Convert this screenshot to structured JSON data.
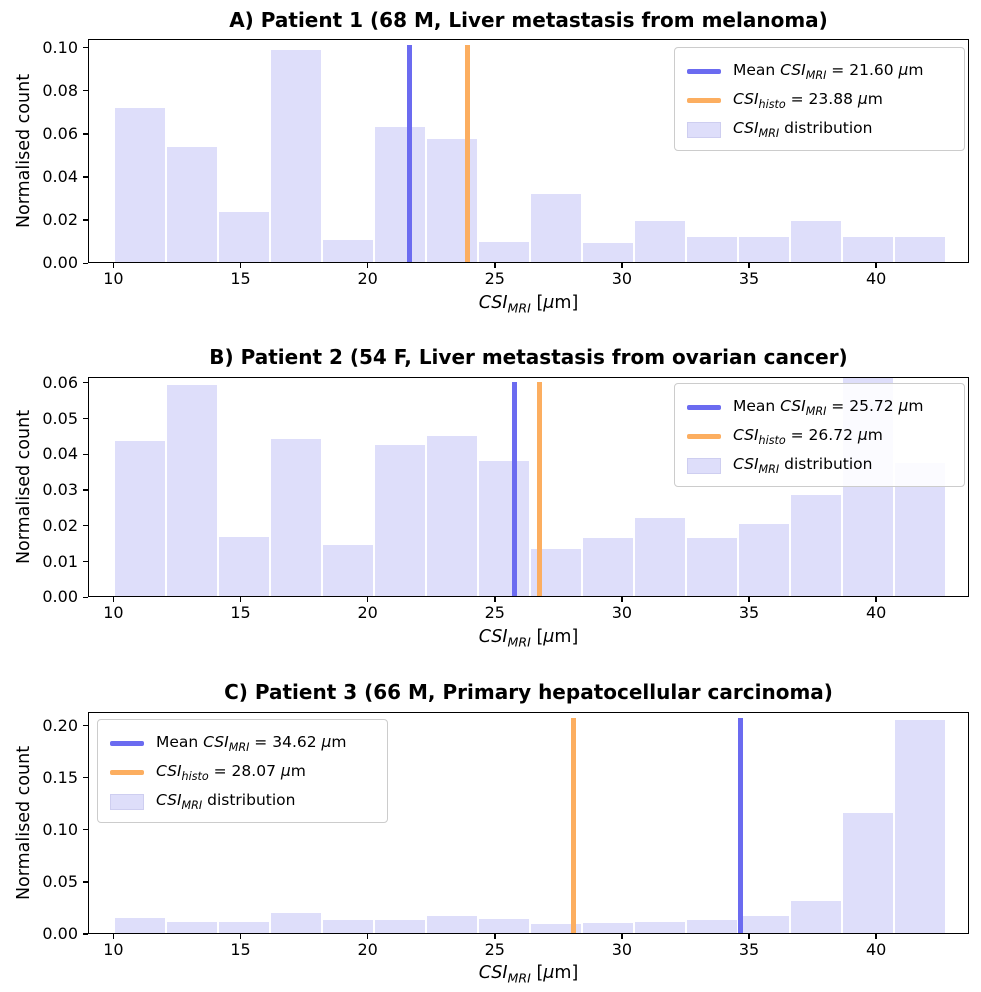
{
  "figure": {
    "ylabel": "Normalised count",
    "xlabel": "CSI_{MRI}  [μm]",
    "xticks": [
      10,
      15,
      20,
      25,
      30,
      35,
      40
    ],
    "colors": {
      "mean_line": "#6b6bf0",
      "histo_line": "#fcae60",
      "bar_fill": "#dedefa",
      "legend_border": "#cccccc",
      "axis": "#000000",
      "background": "#ffffff"
    }
  },
  "chart_data": [
    {
      "type": "bar",
      "panel": "A",
      "title": "A) Patient 1 (68 M, Liver metastasis from melanoma)",
      "ylabel": "Normalised count",
      "xlabel": "CSI_{MRI}  [μm]",
      "bins": {
        "start": 10,
        "end": 42.7,
        "count": 16
      },
      "values": [
        0.0716,
        0.0533,
        0.0233,
        0.0984,
        0.0105,
        0.0628,
        0.0573,
        0.0094,
        0.0317,
        0.0088,
        0.0192,
        0.0117,
        0.0117,
        0.0192,
        0.0117,
        0.0117
      ],
      "mean_mri_um": 21.6,
      "csi_histo_um": 23.88,
      "xlim": [
        9.0,
        43.65
      ],
      "ylim": [
        0,
        0.104
      ],
      "yticks": [
        0,
        0.02,
        0.04,
        0.06,
        0.08,
        0.1
      ],
      "legend": {
        "position": "top-right",
        "entries": [
          {
            "swatch": "mean-line",
            "label": "Mean CSI_{MRI} = 21.60 μm"
          },
          {
            "swatch": "histo-line",
            "label": "CSI_{histo} = 23.88 μm"
          },
          {
            "swatch": "dist-patch",
            "label": "CSI_{MRI} distribution"
          }
        ]
      }
    },
    {
      "type": "bar",
      "panel": "B",
      "title": "B) Patient 2 (54 F, Liver metastasis from ovarian cancer)",
      "ylabel": "Normalised count",
      "xlabel": "CSI_{MRI}  [μm]",
      "bins": {
        "start": 10,
        "end": 42.7,
        "count": 16
      },
      "values": [
        0.0435,
        0.0592,
        0.0165,
        0.044,
        0.0143,
        0.0424,
        0.0448,
        0.0379,
        0.0131,
        0.0162,
        0.0218,
        0.0162,
        0.0202,
        0.0284,
        0.062,
        0.0372
      ],
      "mean_mri_um": 25.72,
      "csi_histo_um": 26.72,
      "xlim": [
        9.0,
        43.65
      ],
      "ylim": [
        0,
        0.0617
      ],
      "yticks": [
        0,
        0.01,
        0.02,
        0.03,
        0.04,
        0.05,
        0.06
      ],
      "legend": {
        "position": "top-right",
        "entries": [
          {
            "swatch": "mean-line",
            "label": "Mean CSI_{MRI} = 25.72 μm"
          },
          {
            "swatch": "histo-line",
            "label": "CSI_{histo} = 26.72 μm"
          },
          {
            "swatch": "dist-patch",
            "label": "CSI_{MRI} distribution"
          }
        ]
      }
    },
    {
      "type": "bar",
      "panel": "C",
      "title": "C) Patient 3 (66 M, Primary hepatocellular carcinoma)",
      "ylabel": "Normalised count",
      "xlabel": "CSI_{MRI}  [μm]",
      "bins": {
        "start": 10,
        "end": 42.7,
        "count": 16
      },
      "values": [
        0.0145,
        0.0105,
        0.0105,
        0.0195,
        0.0125,
        0.0125,
        0.0165,
        0.0135,
        0.009,
        0.01,
        0.0105,
        0.0125,
        0.0165,
        0.0305,
        0.1153,
        0.2046
      ],
      "mean_mri_um": 34.62,
      "csi_histo_um": 28.07,
      "xlim": [
        9.0,
        43.65
      ],
      "ylim": [
        0,
        0.213
      ],
      "yticks": [
        0,
        0.05,
        0.1,
        0.15,
        0.2
      ],
      "legend": {
        "position": "top-left",
        "entries": [
          {
            "swatch": "mean-line",
            "label": "Mean CSI_{MRI} = 34.62 μm"
          },
          {
            "swatch": "histo-line",
            "label": "CSI_{histo} = 28.07 μm"
          },
          {
            "swatch": "dist-patch",
            "label": "CSI_{MRI} distribution"
          }
        ]
      }
    }
  ]
}
